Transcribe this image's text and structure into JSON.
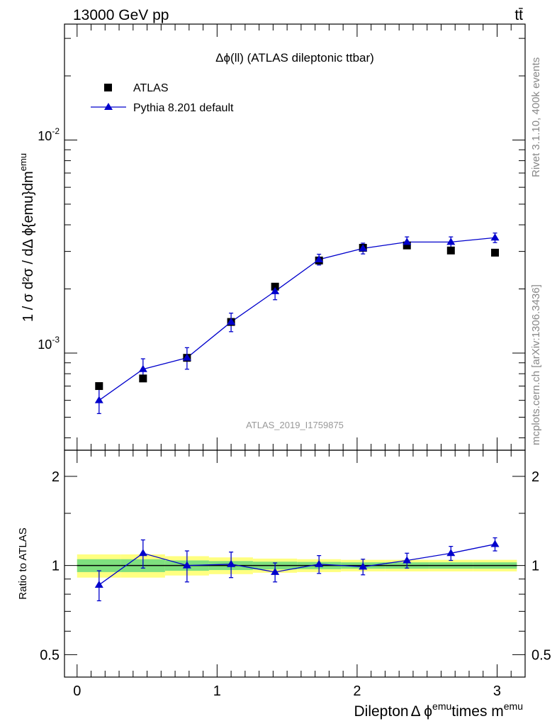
{
  "header": {
    "left": "13000 GeV pp",
    "right": "tt̄"
  },
  "side_labels": {
    "rivet": "Rivet 3.1.10,  400k events",
    "mcplots": "mcplots.cern.ch [arXiv:1306.3436]"
  },
  "chart_data": [
    {
      "panel": "main",
      "type": "scatter",
      "title": "Δϕ(ll) (ATLAS dileptonic ttbar)",
      "analysis_id": "ATLAS_2019_I1759875",
      "ylabel": "1 / σ  d²σ / dΔ ϕ{emu}dm^emu",
      "yscale": "log",
      "ylim": [
        0.00035,
        0.035
      ],
      "xlim": [
        -0.09,
        3.2
      ],
      "y_tick_labels": [
        "10^-3",
        "10^-2"
      ],
      "legend_position": "top-left",
      "series": [
        {
          "name": "ATLAS",
          "style": "square markers",
          "color": "#000000",
          "x": [
            0.157,
            0.471,
            0.785,
            1.1,
            1.414,
            1.728,
            2.042,
            2.356,
            2.67,
            2.985
          ],
          "y": [
            0.0007,
            0.00076,
            0.00095,
            0.0014,
            0.00205,
            0.00272,
            0.00312,
            0.0032,
            0.00303,
            0.00296
          ]
        },
        {
          "name": "Pythia 8.201 default",
          "style": "line with triangle markers",
          "color": "#0000cc",
          "x": [
            0.157,
            0.471,
            0.785,
            1.1,
            1.414,
            1.728,
            2.042,
            2.356,
            2.67,
            2.985
          ],
          "y": [
            0.0006,
            0.00084,
            0.00095,
            0.0014,
            0.00195,
            0.00275,
            0.0031,
            0.00332,
            0.00332,
            0.00348
          ],
          "err_up": [
            8e-05,
            0.0001,
            0.00011,
            0.00014,
            0.00017,
            0.00016,
            0.00018,
            0.00019,
            0.00019,
            0.00018
          ],
          "err_down": [
            8e-05,
            0.0001,
            0.00011,
            0.00014,
            0.00017,
            0.00016,
            0.00018,
            0.00019,
            0.00019,
            0.00018
          ]
        }
      ]
    },
    {
      "panel": "ratio",
      "type": "line",
      "ylabel": "Ratio to ATLAS",
      "xlabel": "Dilepton Δ ϕ^emu times m^emu",
      "yscale": "log",
      "ylim": [
        0.42,
        2.45
      ],
      "xlim": [
        -0.09,
        3.2
      ],
      "x_tick_labels": [
        "0",
        "1",
        "2",
        "3"
      ],
      "y_tick_labels": [
        "0.5",
        "1",
        "2"
      ],
      "reference": 1.0,
      "band": {
        "x_edges": [
          0.0,
          0.314,
          0.628,
          0.942,
          1.256,
          1.571,
          1.885,
          2.199,
          2.513,
          2.827,
          3.141
        ],
        "inner_half": [
          0.05,
          0.05,
          0.04,
          0.035,
          0.03,
          0.028,
          0.025,
          0.025,
          0.025,
          0.025
        ],
        "outer_half": [
          0.09,
          0.09,
          0.075,
          0.065,
          0.055,
          0.05,
          0.045,
          0.045,
          0.045,
          0.045
        ],
        "inner_color": "#7fe07f",
        "outer_color": "#ffff80"
      },
      "series": [
        {
          "name": "Pythia 8.201 default",
          "color": "#0000cc",
          "x": [
            0.157,
            0.471,
            0.785,
            1.1,
            1.414,
            1.728,
            2.042,
            2.356,
            2.67,
            2.985
          ],
          "y": [
            0.86,
            1.1,
            1.0,
            1.01,
            0.95,
            1.01,
            0.99,
            1.04,
            1.1,
            1.18
          ],
          "err_up": [
            0.1,
            0.12,
            0.12,
            0.1,
            0.07,
            0.07,
            0.06,
            0.06,
            0.06,
            0.06
          ],
          "err_down": [
            0.1,
            0.12,
            0.12,
            0.1,
            0.07,
            0.07,
            0.06,
            0.06,
            0.06,
            0.06
          ]
        }
      ]
    }
  ]
}
